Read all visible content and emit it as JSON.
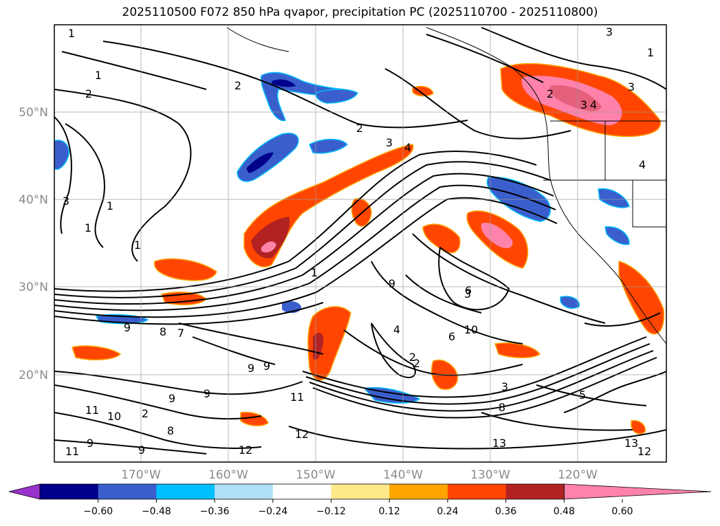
{
  "title": "2025110500 F072 850 hPa qvapor, precipitation PC (2025110700 - 2025110800)",
  "lat_labels": [
    "50°N",
    "40°N",
    "30°N",
    "20°N"
  ],
  "lon_labels": [
    "170°W",
    "160°W",
    "150°W",
    "140°W",
    "130°W",
    "120°W"
  ],
  "colorbar": {
    "colors": [
      "#9932cc",
      "#00008b",
      "#3a5fcd",
      "#00bfff",
      "#b0e0f8",
      "#ffffff",
      "#ffe88a",
      "#ffa500",
      "#ff4500",
      "#b22222",
      "#ff82ab"
    ],
    "tick_labels": [
      "−0.60",
      "−0.48",
      "−0.36",
      "−0.24",
      "−0.12",
      "0.12",
      "0.24",
      "0.36",
      "0.48",
      "0.60"
    ]
  },
  "contour_labels": [
    "1",
    "1",
    "2",
    "1",
    "1",
    "1",
    "2",
    "2",
    "3",
    "4",
    "3",
    "3",
    "2",
    "3",
    "1",
    "4",
    "1",
    "9",
    "9",
    "8",
    "7",
    "6",
    "9",
    "9",
    "9",
    "9",
    "4",
    "6",
    "2",
    "3",
    "8",
    "5",
    "2",
    "11",
    "10",
    "8",
    "11",
    "9",
    "12",
    "13",
    "12",
    "13",
    "11",
    "12",
    "9",
    "10",
    "3",
    "4",
    "2",
    "3"
  ]
}
